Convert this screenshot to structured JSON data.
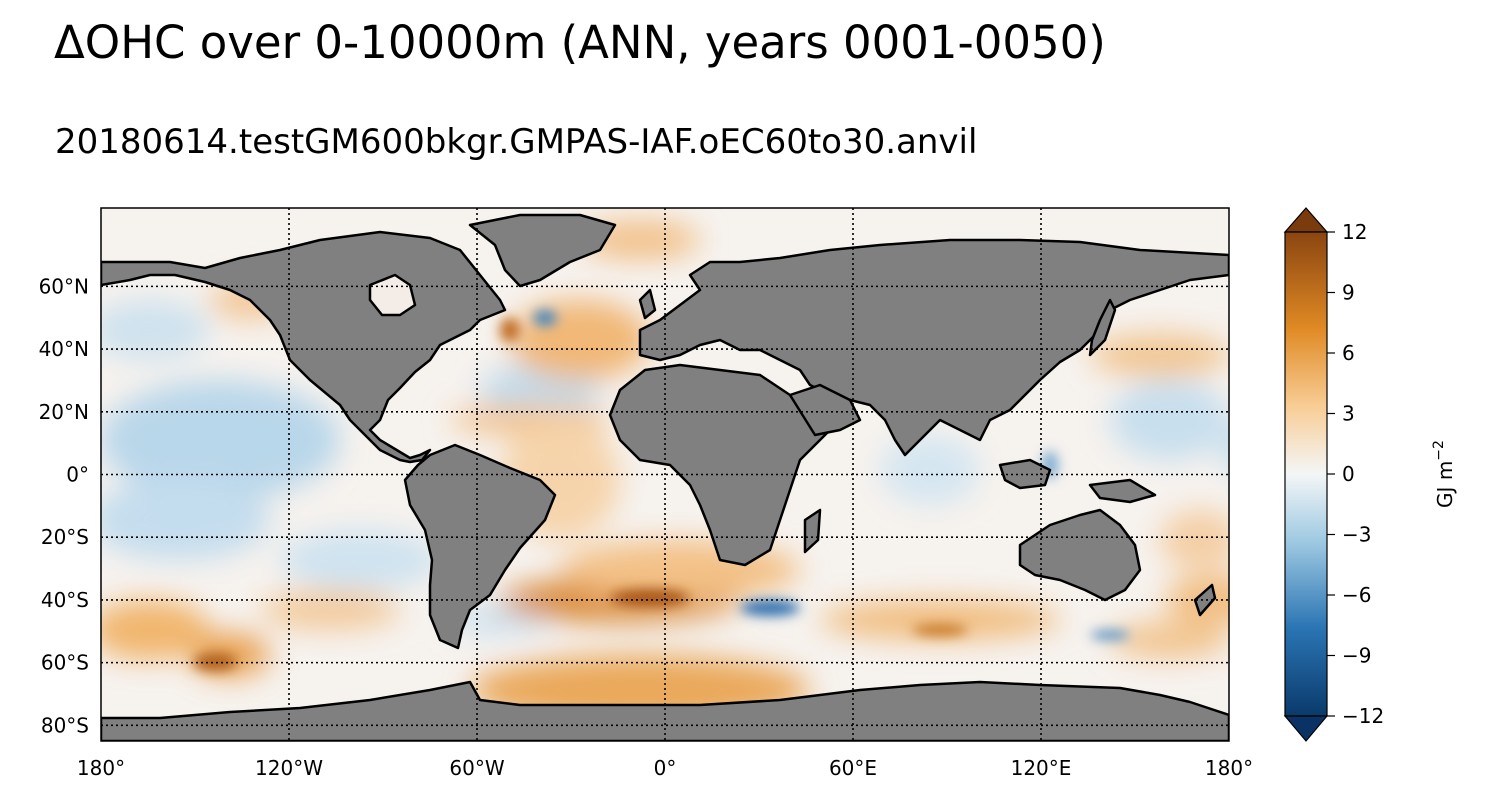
{
  "figure": {
    "title": "ΔOHC over 0-10000m (ANN, years 0001-0050)",
    "subtitle": "20180614.testGM600bkgr.GMPAS-IAF.oEC60to30.anvil"
  },
  "map": {
    "projection": "PlateCarree",
    "lon_range": [
      -180,
      180
    ],
    "lat_range": [
      -85,
      85
    ],
    "x_ticks": [
      {
        "value": -180,
        "label": "180°"
      },
      {
        "value": -120,
        "label": "120°W"
      },
      {
        "value": -60,
        "label": "60°W"
      },
      {
        "value": 0,
        "label": "0°"
      },
      {
        "value": 60,
        "label": "60°E"
      },
      {
        "value": 120,
        "label": "120°E"
      },
      {
        "value": 180,
        "label": "180°"
      }
    ],
    "y_ticks": [
      {
        "value": 60,
        "label": "60°N"
      },
      {
        "value": 40,
        "label": "40°N"
      },
      {
        "value": 20,
        "label": "20°N"
      },
      {
        "value": 0,
        "label": "0°"
      },
      {
        "value": -20,
        "label": "20°S"
      },
      {
        "value": -40,
        "label": "40°S"
      },
      {
        "value": -60,
        "label": "60°S"
      },
      {
        "value": -80,
        "label": "80°S"
      }
    ],
    "gridlines": "dotted",
    "land_color": "#808080",
    "coastline_color": "#000000"
  },
  "colorbar": {
    "label": "GJ m",
    "label_exponent": "−2",
    "range": [
      -12,
      12
    ],
    "extend": "both",
    "colormap": "blue-white-orange-brown",
    "ticks": [
      {
        "value": 12,
        "label": "12"
      },
      {
        "value": 9,
        "label": "9"
      },
      {
        "value": 6,
        "label": "6"
      },
      {
        "value": 3,
        "label": "3"
      },
      {
        "value": 0,
        "label": "0"
      },
      {
        "value": -3,
        "label": "−3"
      },
      {
        "value": -6,
        "label": "−6"
      },
      {
        "value": -9,
        "label": "−9"
      },
      {
        "value": -12,
        "label": "−12"
      }
    ]
  }
}
